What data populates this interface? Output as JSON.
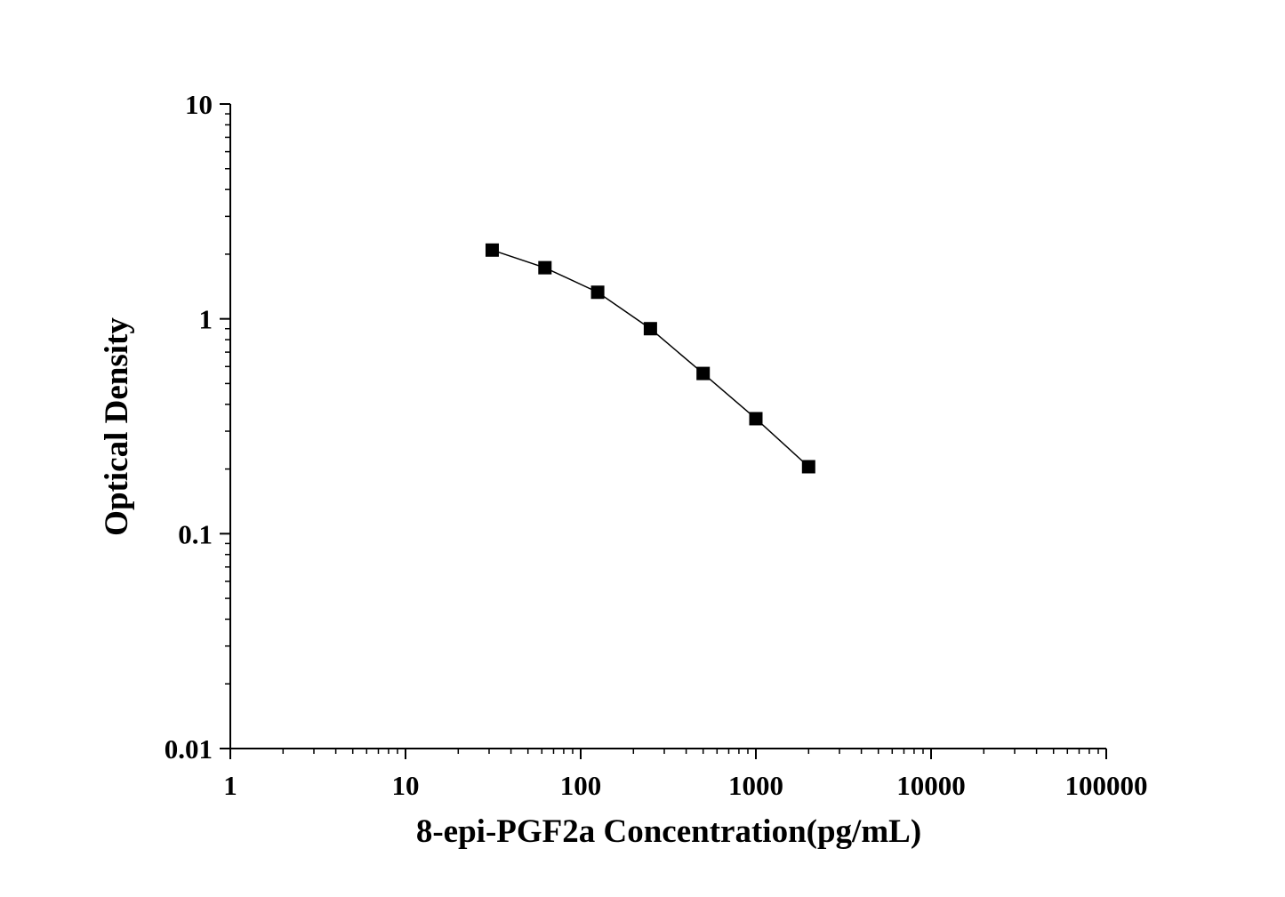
{
  "chart_data": {
    "type": "line",
    "title": "",
    "xlabel": "8-epi-PGF2a Concentration(pg/mL)",
    "ylabel": "Optical Density",
    "xscale": "log",
    "yscale": "log",
    "xlim": [
      1,
      100000
    ],
    "ylim": [
      0.01,
      10
    ],
    "xticks": [
      "1",
      "10",
      "100",
      "1000",
      "10000",
      "100000"
    ],
    "yticks": [
      "0.01",
      "0.1",
      "1",
      "10"
    ],
    "grid": false,
    "legend": "none",
    "marker": "square",
    "color": "#000000",
    "series": [
      {
        "x": [
          31.25,
          62.5,
          125,
          250,
          500,
          1000,
          2000
        ],
        "y": [
          2.09,
          1.73,
          1.33,
          0.9,
          0.557,
          0.343,
          0.205
        ]
      }
    ]
  }
}
